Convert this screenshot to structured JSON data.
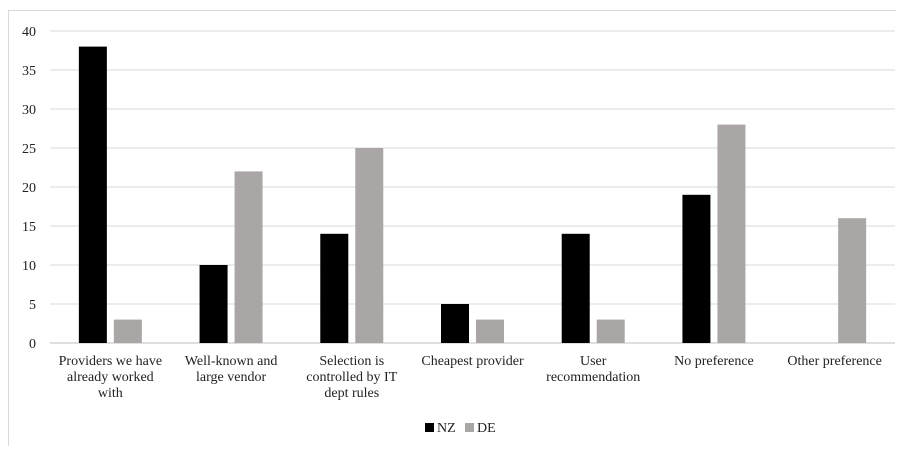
{
  "chart_data": {
    "type": "bar",
    "categories": [
      [
        "Providers we have",
        "already worked",
        "with"
      ],
      [
        "Well-known and",
        "large vendor"
      ],
      [
        "Selection is",
        "controlled by IT",
        "dept rules"
      ],
      [
        "Cheapest provider"
      ],
      [
        "User",
        "recommendation"
      ],
      [
        "No preference"
      ],
      [
        "Other preference"
      ]
    ],
    "series": [
      {
        "name": "NZ",
        "color": "#000000",
        "values": [
          38,
          10,
          14,
          5,
          14,
          19,
          0
        ]
      },
      {
        "name": "DE",
        "color": "#aaa6a5",
        "values": [
          3,
          22,
          25,
          3,
          3,
          28,
          16
        ]
      }
    ],
    "ylim": [
      0,
      40
    ],
    "yticks": [
      0,
      5,
      10,
      15,
      20,
      25,
      30,
      35,
      40
    ],
    "grid": true,
    "legend": "bottom",
    "title": "",
    "xlabel": "",
    "ylabel": ""
  }
}
